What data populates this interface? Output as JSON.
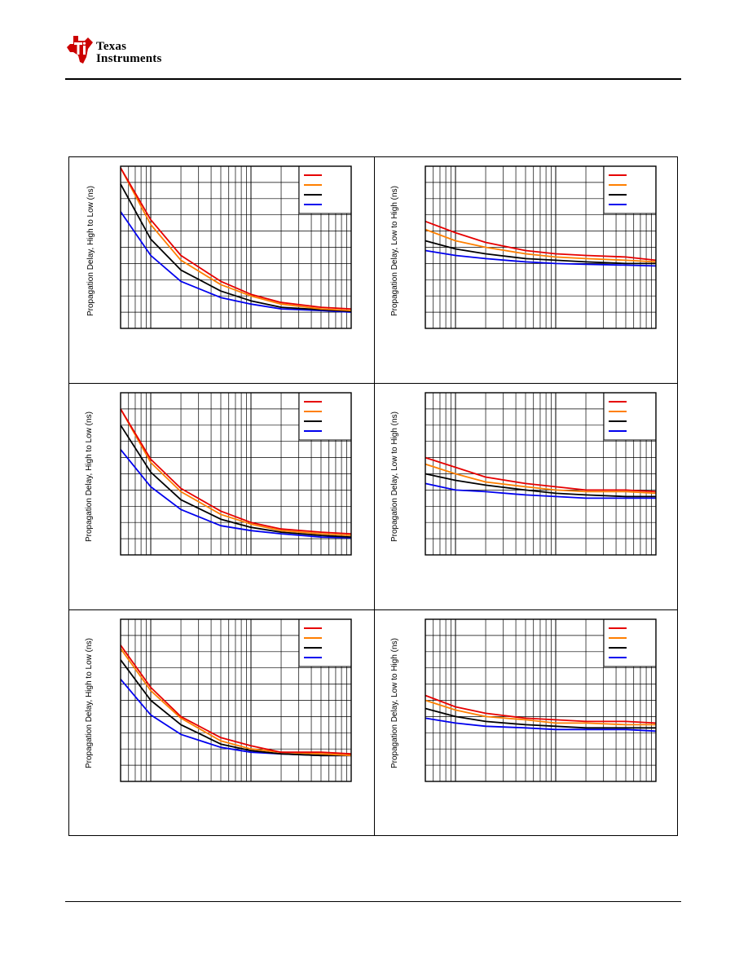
{
  "header": {
    "brand_line1": "Texas",
    "brand_line2": "Instruments",
    "brand_color": "#cc0000"
  },
  "panels": [
    {
      "ylabel": "Propagation Delay, High to Low (ns)",
      "row": 0,
      "col": 0
    },
    {
      "ylabel": "Propagation Delay, Low to High (ns)",
      "row": 0,
      "col": 1
    },
    {
      "ylabel": "Propagation Delay, High to Low (ns)",
      "row": 1,
      "col": 0
    },
    {
      "ylabel": "Propagation Delay, Low to High (ns)",
      "row": 1,
      "col": 1
    },
    {
      "ylabel": "Propagation Delay, High to Low (ns)",
      "row": 2,
      "col": 0
    },
    {
      "ylabel": "Propagation Delay, Low to High (ns)",
      "row": 2,
      "col": 1
    }
  ],
  "chart_data": [
    {
      "type": "line",
      "xscale": "log",
      "xlim": [
        5,
        1000
      ],
      "ylim": [
        0,
        10
      ],
      "grid": true,
      "legend_position": "top-right",
      "x": [
        5,
        10,
        20,
        50,
        100,
        200,
        500,
        1000
      ],
      "series": [
        {
          "color": "#e60000",
          "values": [
            9.9,
            6.7,
            4.5,
            2.9,
            2.1,
            1.6,
            1.3,
            1.2
          ]
        },
        {
          "color": "#ff7f00",
          "values": [
            9.9,
            6.4,
            4.2,
            2.7,
            2.0,
            1.5,
            1.2,
            1.1
          ]
        },
        {
          "color": "#000000",
          "values": [
            8.9,
            5.5,
            3.6,
            2.3,
            1.7,
            1.3,
            1.15,
            1.05
          ]
        },
        {
          "color": "#0000ee",
          "values": [
            7.2,
            4.5,
            2.9,
            1.9,
            1.5,
            1.2,
            1.1,
            1.0
          ]
        }
      ]
    },
    {
      "type": "line",
      "xscale": "log",
      "xlim": [
        5,
        1000
      ],
      "ylim": [
        0,
        10
      ],
      "grid": true,
      "legend_position": "top-right",
      "x": [
        5,
        10,
        20,
        50,
        100,
        200,
        500,
        1000
      ],
      "series": [
        {
          "color": "#e60000",
          "values": [
            6.6,
            5.9,
            5.3,
            4.8,
            4.6,
            4.5,
            4.4,
            4.2
          ]
        },
        {
          "color": "#ff7f00",
          "values": [
            6.1,
            5.4,
            5.0,
            4.6,
            4.4,
            4.3,
            4.2,
            4.1
          ]
        },
        {
          "color": "#000000",
          "values": [
            5.4,
            4.9,
            4.6,
            4.3,
            4.2,
            4.1,
            4.0,
            4.0
          ]
        },
        {
          "color": "#0000ee",
          "values": [
            4.8,
            4.5,
            4.3,
            4.1,
            4.0,
            3.95,
            3.9,
            3.85
          ]
        }
      ]
    },
    {
      "type": "line",
      "xscale": "log",
      "xlim": [
        5,
        1000
      ],
      "ylim": [
        0,
        10
      ],
      "grid": true,
      "legend_position": "top-right",
      "x": [
        5,
        10,
        20,
        50,
        100,
        200,
        500,
        1000
      ],
      "series": [
        {
          "color": "#e60000",
          "values": [
            9.0,
            5.9,
            4.1,
            2.7,
            2.0,
            1.6,
            1.4,
            1.3
          ]
        },
        {
          "color": "#ff7f00",
          "values": [
            9.0,
            5.7,
            3.9,
            2.5,
            1.9,
            1.5,
            1.3,
            1.2
          ]
        },
        {
          "color": "#000000",
          "values": [
            8.0,
            5.1,
            3.4,
            2.2,
            1.7,
            1.4,
            1.2,
            1.1
          ]
        },
        {
          "color": "#0000ee",
          "values": [
            6.5,
            4.2,
            2.8,
            1.8,
            1.5,
            1.3,
            1.1,
            1.05
          ]
        }
      ]
    },
    {
      "type": "line",
      "xscale": "log",
      "xlim": [
        5,
        1000
      ],
      "ylim": [
        0,
        10
      ],
      "grid": true,
      "legend_position": "top-right",
      "x": [
        5,
        10,
        20,
        50,
        100,
        200,
        500,
        1000
      ],
      "series": [
        {
          "color": "#e60000",
          "values": [
            6.0,
            5.4,
            4.8,
            4.4,
            4.2,
            4.0,
            4.0,
            3.9
          ]
        },
        {
          "color": "#ff7f00",
          "values": [
            5.6,
            5.0,
            4.5,
            4.2,
            4.0,
            3.9,
            3.9,
            3.8
          ]
        },
        {
          "color": "#000000",
          "values": [
            5.0,
            4.6,
            4.3,
            4.0,
            3.8,
            3.7,
            3.6,
            3.6
          ]
        },
        {
          "color": "#0000ee",
          "values": [
            4.4,
            4.0,
            3.9,
            3.7,
            3.6,
            3.5,
            3.5,
            3.5
          ]
        }
      ]
    },
    {
      "type": "line",
      "xscale": "log",
      "xlim": [
        5,
        1000
      ],
      "ylim": [
        0,
        10
      ],
      "grid": true,
      "legend_position": "top-right",
      "x": [
        5,
        10,
        20,
        50,
        100,
        200,
        500,
        1000
      ],
      "series": [
        {
          "color": "#e60000",
          "values": [
            8.4,
            5.8,
            4.0,
            2.7,
            2.2,
            1.8,
            1.8,
            1.7
          ]
        },
        {
          "color": "#ff7f00",
          "values": [
            8.2,
            5.6,
            3.9,
            2.5,
            2.0,
            1.8,
            1.7,
            1.6
          ]
        },
        {
          "color": "#000000",
          "values": [
            7.5,
            5.0,
            3.5,
            2.3,
            1.9,
            1.7,
            1.6,
            1.6
          ]
        },
        {
          "color": "#0000ee",
          "values": [
            6.3,
            4.1,
            2.9,
            2.1,
            1.8,
            1.7,
            1.6,
            1.6
          ]
        }
      ]
    },
    {
      "type": "line",
      "xscale": "log",
      "xlim": [
        5,
        1000
      ],
      "ylim": [
        0,
        10
      ],
      "grid": true,
      "legend_position": "top-right",
      "x": [
        5,
        10,
        20,
        50,
        100,
        200,
        500,
        1000
      ],
      "series": [
        {
          "color": "#e60000",
          "values": [
            5.3,
            4.6,
            4.2,
            3.9,
            3.8,
            3.7,
            3.7,
            3.6
          ]
        },
        {
          "color": "#ff7f00",
          "values": [
            5.0,
            4.4,
            4.0,
            3.8,
            3.6,
            3.6,
            3.5,
            3.5
          ]
        },
        {
          "color": "#000000",
          "values": [
            4.5,
            4.0,
            3.7,
            3.5,
            3.4,
            3.3,
            3.3,
            3.3
          ]
        },
        {
          "color": "#0000ee",
          "values": [
            3.9,
            3.6,
            3.4,
            3.3,
            3.2,
            3.2,
            3.2,
            3.1
          ]
        }
      ]
    }
  ]
}
